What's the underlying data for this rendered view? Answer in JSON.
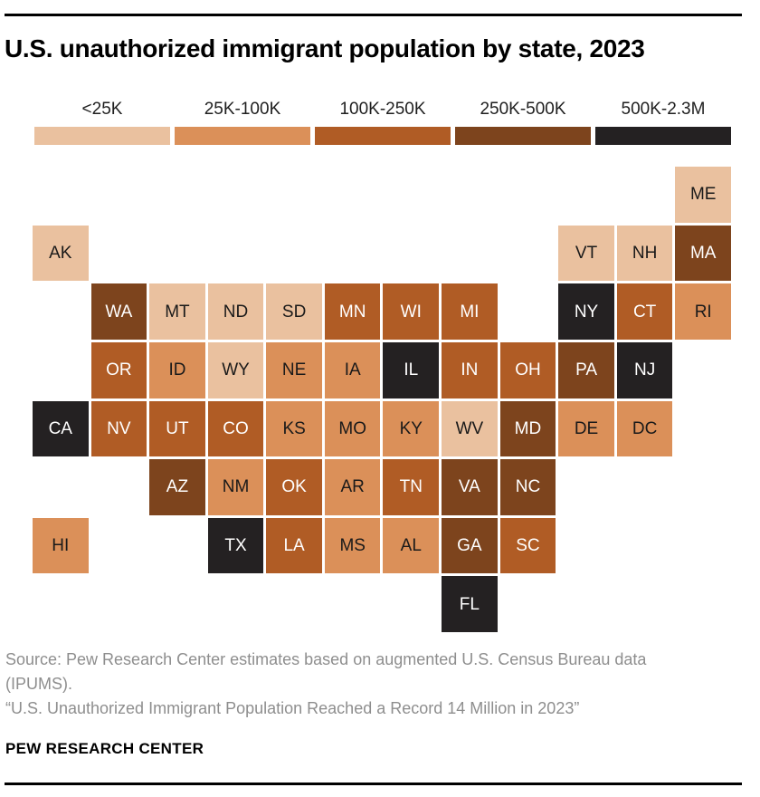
{
  "header": {
    "title": "U.S. unauthorized immigrant population by state, 2023"
  },
  "chart_data": {
    "type": "heatmap",
    "subtype": "tile-grid-map",
    "title": "U.S. unauthorized immigrant population by state, 2023",
    "legend_position": "top",
    "unit": "unauthorized immigrant population (persons)",
    "categories": [
      {
        "label": "<25K",
        "color": "#EAC19F",
        "text_color": "#1a1a1a"
      },
      {
        "label": "25K-100K",
        "color": "#DB9059",
        "text_color": "#1a1a1a"
      },
      {
        "label": "100K-250K",
        "color": "#B05C25",
        "text_color": "#ffffff"
      },
      {
        "label": "250K-500K",
        "color": "#7D441D",
        "text_color": "#ffffff"
      },
      {
        "label": "500K-2.3M",
        "color": "#242122",
        "text_color": "#ffffff"
      }
    ],
    "states": [
      {
        "abbr": "ME",
        "row": 1,
        "col": 11,
        "category": "<25K"
      },
      {
        "abbr": "AK",
        "row": 2,
        "col": 0,
        "category": "<25K"
      },
      {
        "abbr": "VT",
        "row": 2,
        "col": 9,
        "category": "<25K"
      },
      {
        "abbr": "NH",
        "row": 2,
        "col": 10,
        "category": "<25K"
      },
      {
        "abbr": "MA",
        "row": 2,
        "col": 11,
        "category": "250K-500K"
      },
      {
        "abbr": "WA",
        "row": 3,
        "col": 1,
        "category": "250K-500K"
      },
      {
        "abbr": "MT",
        "row": 3,
        "col": 2,
        "category": "<25K"
      },
      {
        "abbr": "ND",
        "row": 3,
        "col": 3,
        "category": "<25K"
      },
      {
        "abbr": "SD",
        "row": 3,
        "col": 4,
        "category": "<25K"
      },
      {
        "abbr": "MN",
        "row": 3,
        "col": 5,
        "category": "100K-250K"
      },
      {
        "abbr": "WI",
        "row": 3,
        "col": 6,
        "category": "100K-250K"
      },
      {
        "abbr": "MI",
        "row": 3,
        "col": 7,
        "category": "100K-250K"
      },
      {
        "abbr": "NY",
        "row": 3,
        "col": 9,
        "category": "500K-2.3M"
      },
      {
        "abbr": "CT",
        "row": 3,
        "col": 10,
        "category": "100K-250K"
      },
      {
        "abbr": "RI",
        "row": 3,
        "col": 11,
        "category": "25K-100K"
      },
      {
        "abbr": "OR",
        "row": 4,
        "col": 1,
        "category": "100K-250K"
      },
      {
        "abbr": "ID",
        "row": 4,
        "col": 2,
        "category": "25K-100K"
      },
      {
        "abbr": "WY",
        "row": 4,
        "col": 3,
        "category": "<25K"
      },
      {
        "abbr": "NE",
        "row": 4,
        "col": 4,
        "category": "25K-100K"
      },
      {
        "abbr": "IA",
        "row": 4,
        "col": 5,
        "category": "25K-100K"
      },
      {
        "abbr": "IL",
        "row": 4,
        "col": 6,
        "category": "500K-2.3M"
      },
      {
        "abbr": "IN",
        "row": 4,
        "col": 7,
        "category": "100K-250K"
      },
      {
        "abbr": "OH",
        "row": 4,
        "col": 8,
        "category": "100K-250K"
      },
      {
        "abbr": "PA",
        "row": 4,
        "col": 9,
        "category": "250K-500K"
      },
      {
        "abbr": "NJ",
        "row": 4,
        "col": 10,
        "category": "500K-2.3M"
      },
      {
        "abbr": "CA",
        "row": 5,
        "col": 0,
        "category": "500K-2.3M"
      },
      {
        "abbr": "NV",
        "row": 5,
        "col": 1,
        "category": "100K-250K"
      },
      {
        "abbr": "UT",
        "row": 5,
        "col": 2,
        "category": "100K-250K"
      },
      {
        "abbr": "CO",
        "row": 5,
        "col": 3,
        "category": "100K-250K"
      },
      {
        "abbr": "KS",
        "row": 5,
        "col": 4,
        "category": "25K-100K"
      },
      {
        "abbr": "MO",
        "row": 5,
        "col": 5,
        "category": "25K-100K"
      },
      {
        "abbr": "KY",
        "row": 5,
        "col": 6,
        "category": "25K-100K"
      },
      {
        "abbr": "WV",
        "row": 5,
        "col": 7,
        "category": "<25K"
      },
      {
        "abbr": "MD",
        "row": 5,
        "col": 8,
        "category": "250K-500K"
      },
      {
        "abbr": "DE",
        "row": 5,
        "col": 9,
        "category": "25K-100K"
      },
      {
        "abbr": "DC",
        "row": 5,
        "col": 10,
        "category": "25K-100K"
      },
      {
        "abbr": "AZ",
        "row": 6,
        "col": 2,
        "category": "250K-500K"
      },
      {
        "abbr": "NM",
        "row": 6,
        "col": 3,
        "category": "25K-100K"
      },
      {
        "abbr": "OK",
        "row": 6,
        "col": 4,
        "category": "100K-250K"
      },
      {
        "abbr": "AR",
        "row": 6,
        "col": 5,
        "category": "25K-100K"
      },
      {
        "abbr": "TN",
        "row": 6,
        "col": 6,
        "category": "100K-250K"
      },
      {
        "abbr": "VA",
        "row": 6,
        "col": 7,
        "category": "250K-500K"
      },
      {
        "abbr": "NC",
        "row": 6,
        "col": 8,
        "category": "250K-500K"
      },
      {
        "abbr": "HI",
        "row": 7,
        "col": 0,
        "category": "25K-100K"
      },
      {
        "abbr": "TX",
        "row": 7,
        "col": 3,
        "category": "500K-2.3M"
      },
      {
        "abbr": "LA",
        "row": 7,
        "col": 4,
        "category": "100K-250K"
      },
      {
        "abbr": "MS",
        "row": 7,
        "col": 5,
        "category": "25K-100K"
      },
      {
        "abbr": "AL",
        "row": 7,
        "col": 6,
        "category": "25K-100K"
      },
      {
        "abbr": "GA",
        "row": 7,
        "col": 7,
        "category": "250K-500K"
      },
      {
        "abbr": "SC",
        "row": 7,
        "col": 8,
        "category": "100K-250K"
      },
      {
        "abbr": "FL",
        "row": 8,
        "col": 7,
        "category": "500K-2.3M"
      }
    ]
  },
  "footer": {
    "source_line1": "Source: Pew Research Center estimates based on augmented U.S. Census Bureau data",
    "source_line2": "(IPUMS).",
    "report_title": "“U.S. Unauthorized Immigrant Population Reached a Record 14 Million in 2023”",
    "brand": "PEW RESEARCH CENTER"
  }
}
